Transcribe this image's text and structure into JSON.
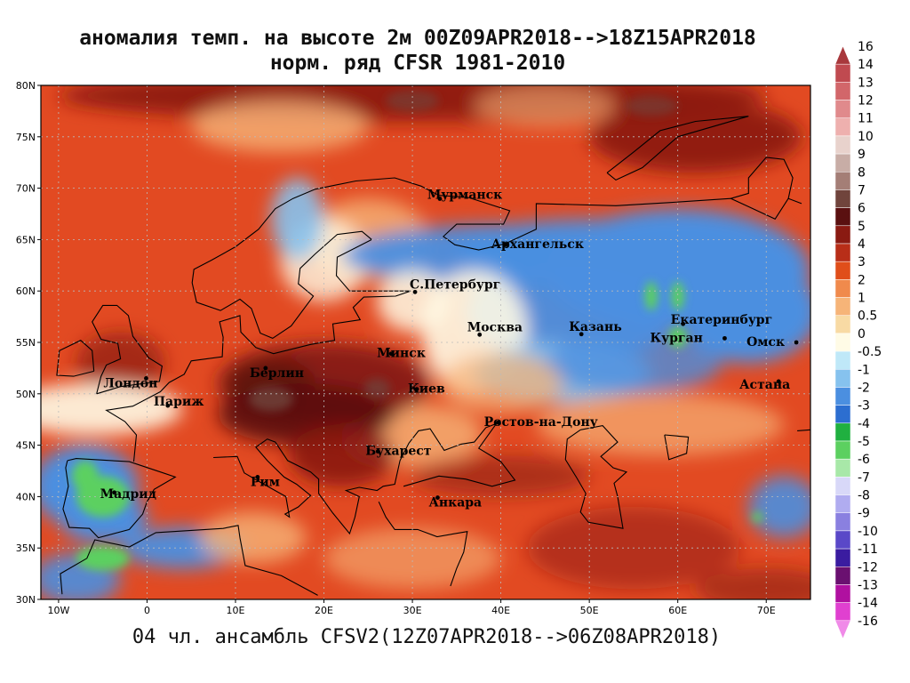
{
  "title_line1": "аномалия темп. на высоте 2м 00Z09APR2018-->18Z15APR2018",
  "title_line2": "норм. ряд CFSR 1981-2010",
  "footer": "04 чл. ансамбль CFSV2(12Z07APR2018-->06Z08APR2018)",
  "lat_ticks": [
    "80N",
    "75N",
    "70N",
    "65N",
    "60N",
    "55N",
    "50N",
    "45N",
    "40N",
    "35N",
    "30N"
  ],
  "lon_ticks": [
    "10W",
    "0",
    "10E",
    "20E",
    "30E",
    "40E",
    "50E",
    "60E",
    "70E"
  ],
  "cities": [
    {
      "name": "Мурманск",
      "lon": 33.1,
      "lat": 68.97
    },
    {
      "name": "Архангельск",
      "lon": 40.5,
      "lat": 64.5
    },
    {
      "name": "С.Петербург",
      "lon": 30.3,
      "lat": 59.9
    },
    {
      "name": "Москва",
      "lon": 37.6,
      "lat": 55.75
    },
    {
      "name": "Казань",
      "lon": 49.1,
      "lat": 55.8
    },
    {
      "name": "Екатеринбург",
      "lon": 60.6,
      "lat": 56.8
    },
    {
      "name": "Курган",
      "lon": 65.3,
      "lat": 55.4
    },
    {
      "name": "Омск",
      "lon": 73.4,
      "lat": 55.0
    },
    {
      "name": "Астана",
      "lon": 71.4,
      "lat": 51.2
    },
    {
      "name": "Лондон",
      "lon": -0.1,
      "lat": 51.5
    },
    {
      "name": "Берлин",
      "lon": 13.4,
      "lat": 52.5
    },
    {
      "name": "Минск",
      "lon": 27.6,
      "lat": 53.9
    },
    {
      "name": "Париж",
      "lon": 2.35,
      "lat": 48.85
    },
    {
      "name": "Киев",
      "lon": 30.5,
      "lat": 50.45
    },
    {
      "name": "Ростов-на-Дону",
      "lon": 39.7,
      "lat": 47.2
    },
    {
      "name": "Бухарест",
      "lon": 26.1,
      "lat": 44.4
    },
    {
      "name": "Рим",
      "lon": 12.5,
      "lat": 41.9
    },
    {
      "name": "Мадрид",
      "lon": -3.7,
      "lat": 40.4
    },
    {
      "name": "Анкара",
      "lon": 32.85,
      "lat": 39.9
    }
  ],
  "colorbar": [
    {
      "label": "16",
      "color": "#a8383c"
    },
    {
      "label": "14",
      "color": "#c04a50"
    },
    {
      "label": "13",
      "color": "#d2666a"
    },
    {
      "label": "12",
      "color": "#e08a8c"
    },
    {
      "label": "11",
      "color": "#eeb0ae"
    },
    {
      "label": "10",
      "color": "#e8d2cc"
    },
    {
      "label": "9",
      "color": "#c8ada6"
    },
    {
      "label": "8",
      "color": "#a47e76"
    },
    {
      "label": "7",
      "color": "#70443c"
    },
    {
      "label": "6",
      "color": "#5a1010"
    },
    {
      "label": "5",
      "color": "#8a1a12"
    },
    {
      "label": "4",
      "color": "#b82e18"
    },
    {
      "label": "3",
      "color": "#e04e1a"
    },
    {
      "label": "2",
      "color": "#f08a4c"
    },
    {
      "label": "1",
      "color": "#f6b478"
    },
    {
      "label": "0.5",
      "color": "#f8daa4"
    },
    {
      "label": "0",
      "color": "#fffbe6"
    },
    {
      "label": "-0.5",
      "color": "#bfe8f8"
    },
    {
      "label": "-1",
      "color": "#86c2ee"
    },
    {
      "label": "-2",
      "color": "#4b8fe0"
    },
    {
      "label": "-3",
      "color": "#2c6ed0"
    },
    {
      "label": "-4",
      "color": "#20b040"
    },
    {
      "label": "-5",
      "color": "#5cd060"
    },
    {
      "label": "-6",
      "color": "#a8e8a8"
    },
    {
      "label": "-7",
      "color": "#d8d8f8"
    },
    {
      "label": "-8",
      "color": "#b0acf0"
    },
    {
      "label": "-9",
      "color": "#8a80e0"
    },
    {
      "label": "-10",
      "color": "#5a48c8"
    },
    {
      "label": "-11",
      "color": "#3a1ca0"
    },
    {
      "label": "-12",
      "color": "#6a1070"
    },
    {
      "label": "-13",
      "color": "#b010a0"
    },
    {
      "label": "-14",
      "color": "#e040d0"
    },
    {
      "label": "-16",
      "color": "#f08ae8"
    }
  ],
  "map_colors": {
    "warm_base": "#e24a22",
    "deep_warm": "#8a1a12",
    "very_deep": "#5a1010",
    "light_warm": "#f6b478",
    "neutral": "#fffbe6",
    "cool_light": "#86c2ee",
    "cool": "#4b8fe0",
    "cold_green": "#5cd060",
    "brownish": "#70443c",
    "coast": "#000000",
    "grid": "#bbbbbb"
  }
}
